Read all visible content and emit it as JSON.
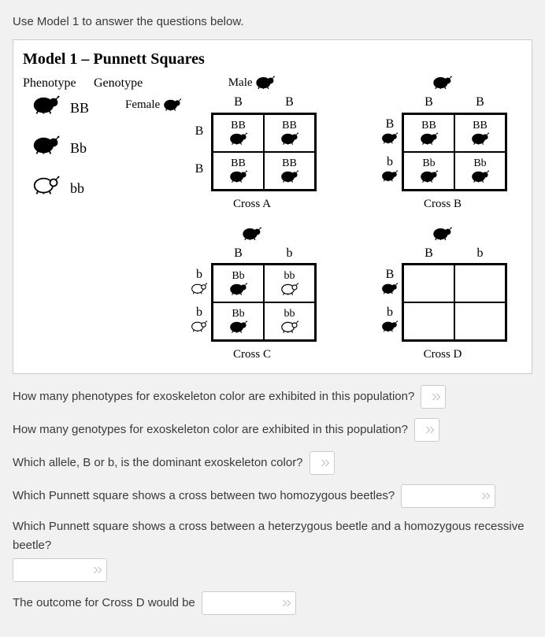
{
  "instruction": "Use Model 1 to answer the questions below.",
  "model": {
    "title": "Model 1 – Punnett Squares",
    "legend": {
      "col1": "Phenotype",
      "col2": "Genotype",
      "rows": [
        {
          "genotype": "BB",
          "color": "black"
        },
        {
          "genotype": "Bb",
          "color": "black"
        },
        {
          "genotype": "bb",
          "color": "white"
        }
      ]
    },
    "male_label": "Male",
    "female_label": "Female",
    "crosses": [
      {
        "name": "Cross A",
        "male_alleles": [
          "B",
          "B"
        ],
        "female_alleles": [
          "B",
          "B"
        ],
        "show_male_icon": true,
        "show_female_label": true,
        "cells": [
          {
            "g": "BB",
            "c": "black"
          },
          {
            "g": "BB",
            "c": "black"
          },
          {
            "g": "BB",
            "c": "black"
          },
          {
            "g": "BB",
            "c": "black"
          }
        ]
      },
      {
        "name": "Cross B",
        "male_alleles": [
          "B",
          "B"
        ],
        "female_alleles": [
          "B",
          "b"
        ],
        "show_male_icon": true,
        "show_female_label": false,
        "cells": [
          {
            "g": "BB",
            "c": "black"
          },
          {
            "g": "BB",
            "c": "black"
          },
          {
            "g": "Bb",
            "c": "black"
          },
          {
            "g": "Bb",
            "c": "black"
          }
        ]
      },
      {
        "name": "Cross C",
        "male_alleles": [
          "B",
          "b"
        ],
        "female_alleles": [
          "b",
          "b"
        ],
        "show_male_icon": true,
        "show_female_label": false,
        "cells": [
          {
            "g": "Bb",
            "c": "black"
          },
          {
            "g": "bb",
            "c": "white"
          },
          {
            "g": "Bb",
            "c": "black"
          },
          {
            "g": "bb",
            "c": "white"
          }
        ]
      },
      {
        "name": "Cross D",
        "male_alleles": [
          "B",
          "b"
        ],
        "female_alleles": [
          "B",
          "b"
        ],
        "show_male_icon": true,
        "show_female_label": false,
        "cells": [
          {
            "g": "",
            "c": ""
          },
          {
            "g": "",
            "c": ""
          },
          {
            "g": "",
            "c": ""
          },
          {
            "g": "",
            "c": ""
          }
        ]
      }
    ]
  },
  "questions": {
    "q1": "How many phenotypes for exoskeleton color are exhibited in this population?",
    "q2": "How many genotypes for exoskeleton color are exhibited in this population?",
    "q3": "Which allele, B or b, is the dominant exoskeleton color?",
    "q4": "Which Punnett square shows a cross between two homozygous beetles?",
    "q5": "Which Punnett square shows a cross between a heterzygous beetle and a homozygous recessive beetle?",
    "q6": "The outcome for Cross D would be"
  }
}
